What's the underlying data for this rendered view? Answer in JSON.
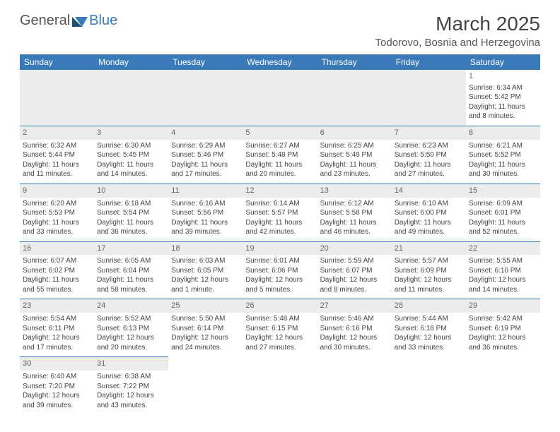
{
  "logo": {
    "general": "General",
    "blue": "Blue"
  },
  "title": "March 2025",
  "location": "Todorovo, Bosnia and Herzegovina",
  "colors": {
    "header_bg": "#3a7ab8",
    "header_text": "#ffffff",
    "daynum_bg": "#ececec",
    "row_divider": "#3a7ab8",
    "text": "#444444"
  },
  "day_headers": [
    "Sunday",
    "Monday",
    "Tuesday",
    "Wednesday",
    "Thursday",
    "Friday",
    "Saturday"
  ],
  "weeks": [
    [
      null,
      null,
      null,
      null,
      null,
      null,
      {
        "n": "1",
        "sr": "Sunrise: 6:34 AM",
        "ss": "Sunset: 5:42 PM",
        "d1": "Daylight: 11 hours",
        "d2": "and 8 minutes."
      }
    ],
    [
      {
        "n": "2",
        "sr": "Sunrise: 6:32 AM",
        "ss": "Sunset: 5:44 PM",
        "d1": "Daylight: 11 hours",
        "d2": "and 11 minutes."
      },
      {
        "n": "3",
        "sr": "Sunrise: 6:30 AM",
        "ss": "Sunset: 5:45 PM",
        "d1": "Daylight: 11 hours",
        "d2": "and 14 minutes."
      },
      {
        "n": "4",
        "sr": "Sunrise: 6:29 AM",
        "ss": "Sunset: 5:46 PM",
        "d1": "Daylight: 11 hours",
        "d2": "and 17 minutes."
      },
      {
        "n": "5",
        "sr": "Sunrise: 6:27 AM",
        "ss": "Sunset: 5:48 PM",
        "d1": "Daylight: 11 hours",
        "d2": "and 20 minutes."
      },
      {
        "n": "6",
        "sr": "Sunrise: 6:25 AM",
        "ss": "Sunset: 5:49 PM",
        "d1": "Daylight: 11 hours",
        "d2": "and 23 minutes."
      },
      {
        "n": "7",
        "sr": "Sunrise: 6:23 AM",
        "ss": "Sunset: 5:50 PM",
        "d1": "Daylight: 11 hours",
        "d2": "and 27 minutes."
      },
      {
        "n": "8",
        "sr": "Sunrise: 6:21 AM",
        "ss": "Sunset: 5:52 PM",
        "d1": "Daylight: 11 hours",
        "d2": "and 30 minutes."
      }
    ],
    [
      {
        "n": "9",
        "sr": "Sunrise: 6:20 AM",
        "ss": "Sunset: 5:53 PM",
        "d1": "Daylight: 11 hours",
        "d2": "and 33 minutes."
      },
      {
        "n": "10",
        "sr": "Sunrise: 6:18 AM",
        "ss": "Sunset: 5:54 PM",
        "d1": "Daylight: 11 hours",
        "d2": "and 36 minutes."
      },
      {
        "n": "11",
        "sr": "Sunrise: 6:16 AM",
        "ss": "Sunset: 5:56 PM",
        "d1": "Daylight: 11 hours",
        "d2": "and 39 minutes."
      },
      {
        "n": "12",
        "sr": "Sunrise: 6:14 AM",
        "ss": "Sunset: 5:57 PM",
        "d1": "Daylight: 11 hours",
        "d2": "and 42 minutes."
      },
      {
        "n": "13",
        "sr": "Sunrise: 6:12 AM",
        "ss": "Sunset: 5:58 PM",
        "d1": "Daylight: 11 hours",
        "d2": "and 46 minutes."
      },
      {
        "n": "14",
        "sr": "Sunrise: 6:10 AM",
        "ss": "Sunset: 6:00 PM",
        "d1": "Daylight: 11 hours",
        "d2": "and 49 minutes."
      },
      {
        "n": "15",
        "sr": "Sunrise: 6:09 AM",
        "ss": "Sunset: 6:01 PM",
        "d1": "Daylight: 11 hours",
        "d2": "and 52 minutes."
      }
    ],
    [
      {
        "n": "16",
        "sr": "Sunrise: 6:07 AM",
        "ss": "Sunset: 6:02 PM",
        "d1": "Daylight: 11 hours",
        "d2": "and 55 minutes."
      },
      {
        "n": "17",
        "sr": "Sunrise: 6:05 AM",
        "ss": "Sunset: 6:04 PM",
        "d1": "Daylight: 11 hours",
        "d2": "and 58 minutes."
      },
      {
        "n": "18",
        "sr": "Sunrise: 6:03 AM",
        "ss": "Sunset: 6:05 PM",
        "d1": "Daylight: 12 hours",
        "d2": "and 1 minute."
      },
      {
        "n": "19",
        "sr": "Sunrise: 6:01 AM",
        "ss": "Sunset: 6:06 PM",
        "d1": "Daylight: 12 hours",
        "d2": "and 5 minutes."
      },
      {
        "n": "20",
        "sr": "Sunrise: 5:59 AM",
        "ss": "Sunset: 6:07 PM",
        "d1": "Daylight: 12 hours",
        "d2": "and 8 minutes."
      },
      {
        "n": "21",
        "sr": "Sunrise: 5:57 AM",
        "ss": "Sunset: 6:09 PM",
        "d1": "Daylight: 12 hours",
        "d2": "and 11 minutes."
      },
      {
        "n": "22",
        "sr": "Sunrise: 5:55 AM",
        "ss": "Sunset: 6:10 PM",
        "d1": "Daylight: 12 hours",
        "d2": "and 14 minutes."
      }
    ],
    [
      {
        "n": "23",
        "sr": "Sunrise: 5:54 AM",
        "ss": "Sunset: 6:11 PM",
        "d1": "Daylight: 12 hours",
        "d2": "and 17 minutes."
      },
      {
        "n": "24",
        "sr": "Sunrise: 5:52 AM",
        "ss": "Sunset: 6:13 PM",
        "d1": "Daylight: 12 hours",
        "d2": "and 20 minutes."
      },
      {
        "n": "25",
        "sr": "Sunrise: 5:50 AM",
        "ss": "Sunset: 6:14 PM",
        "d1": "Daylight: 12 hours",
        "d2": "and 24 minutes."
      },
      {
        "n": "26",
        "sr": "Sunrise: 5:48 AM",
        "ss": "Sunset: 6:15 PM",
        "d1": "Daylight: 12 hours",
        "d2": "and 27 minutes."
      },
      {
        "n": "27",
        "sr": "Sunrise: 5:46 AM",
        "ss": "Sunset: 6:16 PM",
        "d1": "Daylight: 12 hours",
        "d2": "and 30 minutes."
      },
      {
        "n": "28",
        "sr": "Sunrise: 5:44 AM",
        "ss": "Sunset: 6:18 PM",
        "d1": "Daylight: 12 hours",
        "d2": "and 33 minutes."
      },
      {
        "n": "29",
        "sr": "Sunrise: 5:42 AM",
        "ss": "Sunset: 6:19 PM",
        "d1": "Daylight: 12 hours",
        "d2": "and 36 minutes."
      }
    ],
    [
      {
        "n": "30",
        "sr": "Sunrise: 6:40 AM",
        "ss": "Sunset: 7:20 PM",
        "d1": "Daylight: 12 hours",
        "d2": "and 39 minutes."
      },
      {
        "n": "31",
        "sr": "Sunrise: 6:38 AM",
        "ss": "Sunset: 7:22 PM",
        "d1": "Daylight: 12 hours",
        "d2": "and 43 minutes."
      },
      null,
      null,
      null,
      null,
      null
    ]
  ]
}
